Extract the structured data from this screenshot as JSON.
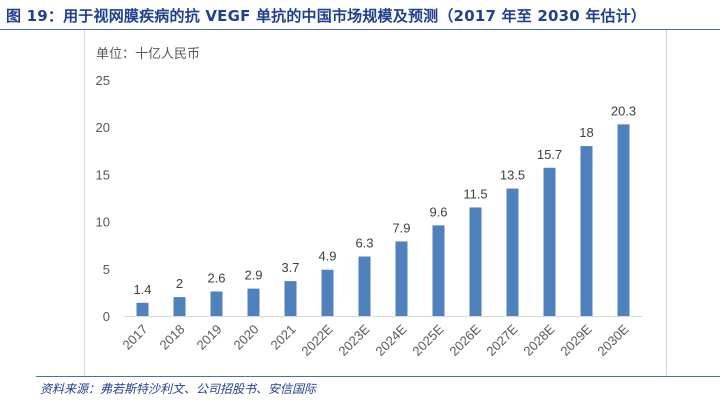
{
  "header": {
    "title": "图 19：用于视网膜疾病的抗 VEGF 单抗的中国市场规模及预测（2017 年至 2030 年估计）"
  },
  "unit_label": "单位：十亿人民币",
  "footer": {
    "source": "资料来源：弗若斯特沙利文、公司招股书、安信国际"
  },
  "colors": {
    "bar": "#4f81bd",
    "title": "#1f3f8f",
    "axis_text": "#595959"
  },
  "chart_data": {
    "type": "bar",
    "title": "用于视网膜疾病的抗 VEGF 单抗的中国市场规模及预测（2017 年至 2030 年估计）",
    "xlabel": "",
    "ylabel": "单位：十亿人民币",
    "categories": [
      "2017",
      "2018",
      "2019",
      "2020",
      "2021",
      "2022E",
      "2023E",
      "2024E",
      "2025E",
      "2026E",
      "2027E",
      "2028E",
      "2029E",
      "2030E"
    ],
    "values": [
      1.4,
      2,
      2.6,
      2.9,
      3.7,
      4.9,
      6.3,
      7.9,
      9.6,
      11.5,
      13.5,
      15.7,
      18,
      20.3
    ],
    "data_labels": [
      "1.4",
      "2",
      "2.6",
      "2.9",
      "3.7",
      "4.9",
      "6.3",
      "7.9",
      "9.6",
      "11.5",
      "13.5",
      "15.7",
      "18",
      "20.3"
    ],
    "ylim": [
      0,
      25
    ],
    "yticks": [
      0,
      5,
      10,
      15,
      20,
      25
    ],
    "grid": false,
    "legend": "none"
  }
}
